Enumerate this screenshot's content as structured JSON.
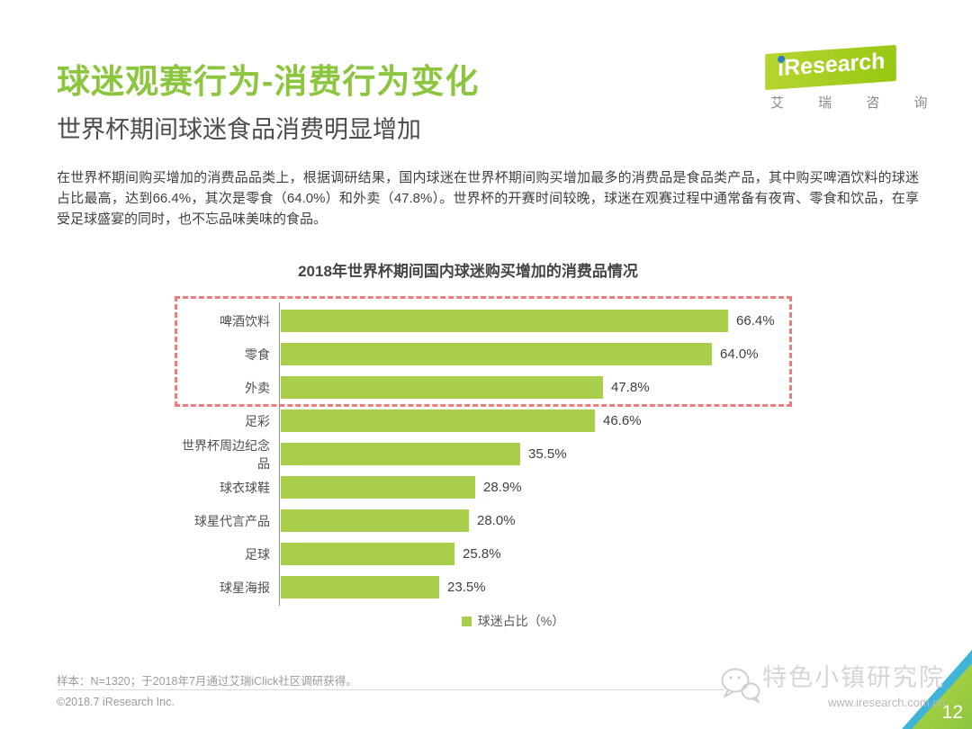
{
  "page": {
    "title": "球迷观赛行为-消费行为变化",
    "subtitle": "世界杯期间球迷食品消费明显增加",
    "body": "在世界杯期间购买增加的消费品品类上，根据调研结果，国内球迷在世界杯期间购买增加最多的消费品是食品类产品，其中购买啤酒饮料的球迷占比最高，达到66.4%，其次是零食（64.0%）和外卖（47.8%）。世界杯的开赛时间较晚，球迷在观赛过程中通常备有夜宵、零食和饮品，在享受足球盛宴的同时，也不忘品味美味的食品。",
    "page_number": "12"
  },
  "logo": {
    "brand": "iResearch",
    "brand_cn": "艾 瑞 咨 询"
  },
  "chart_data": {
    "type": "bar",
    "orientation": "horizontal",
    "title": "2018年世界杯期间国内球迷购买增加的消费品情况",
    "categories": [
      "啤酒饮料",
      "零食",
      "外卖",
      "足彩",
      "世界杯周边纪念品",
      "球衣球鞋",
      "球星代言产品",
      "足球",
      "球星海报"
    ],
    "values": [
      66.4,
      64.0,
      47.8,
      46.6,
      35.5,
      28.9,
      28.0,
      25.8,
      23.5
    ],
    "value_labels": [
      "66.4%",
      "64.0%",
      "47.8%",
      "46.6%",
      "35.5%",
      "28.9%",
      "28.0%",
      "25.8%",
      "23.5%"
    ],
    "legend": "球迷占比（%）",
    "xlim": [
      0,
      70
    ],
    "grid": false,
    "legend_position": "bottom-center",
    "bar_color": "#a9ce4b",
    "highlight_top3": true,
    "highlight_border_color": "#ee7c7c"
  },
  "footer": {
    "note": "样本：N=1320；于2018年7月通过艾瑞iClick社区调研获得。",
    "copyright": "©2018.7 iResearch Inc.",
    "watermark": "特色小镇研究院",
    "website": "www.iresearch.com.cn"
  }
}
